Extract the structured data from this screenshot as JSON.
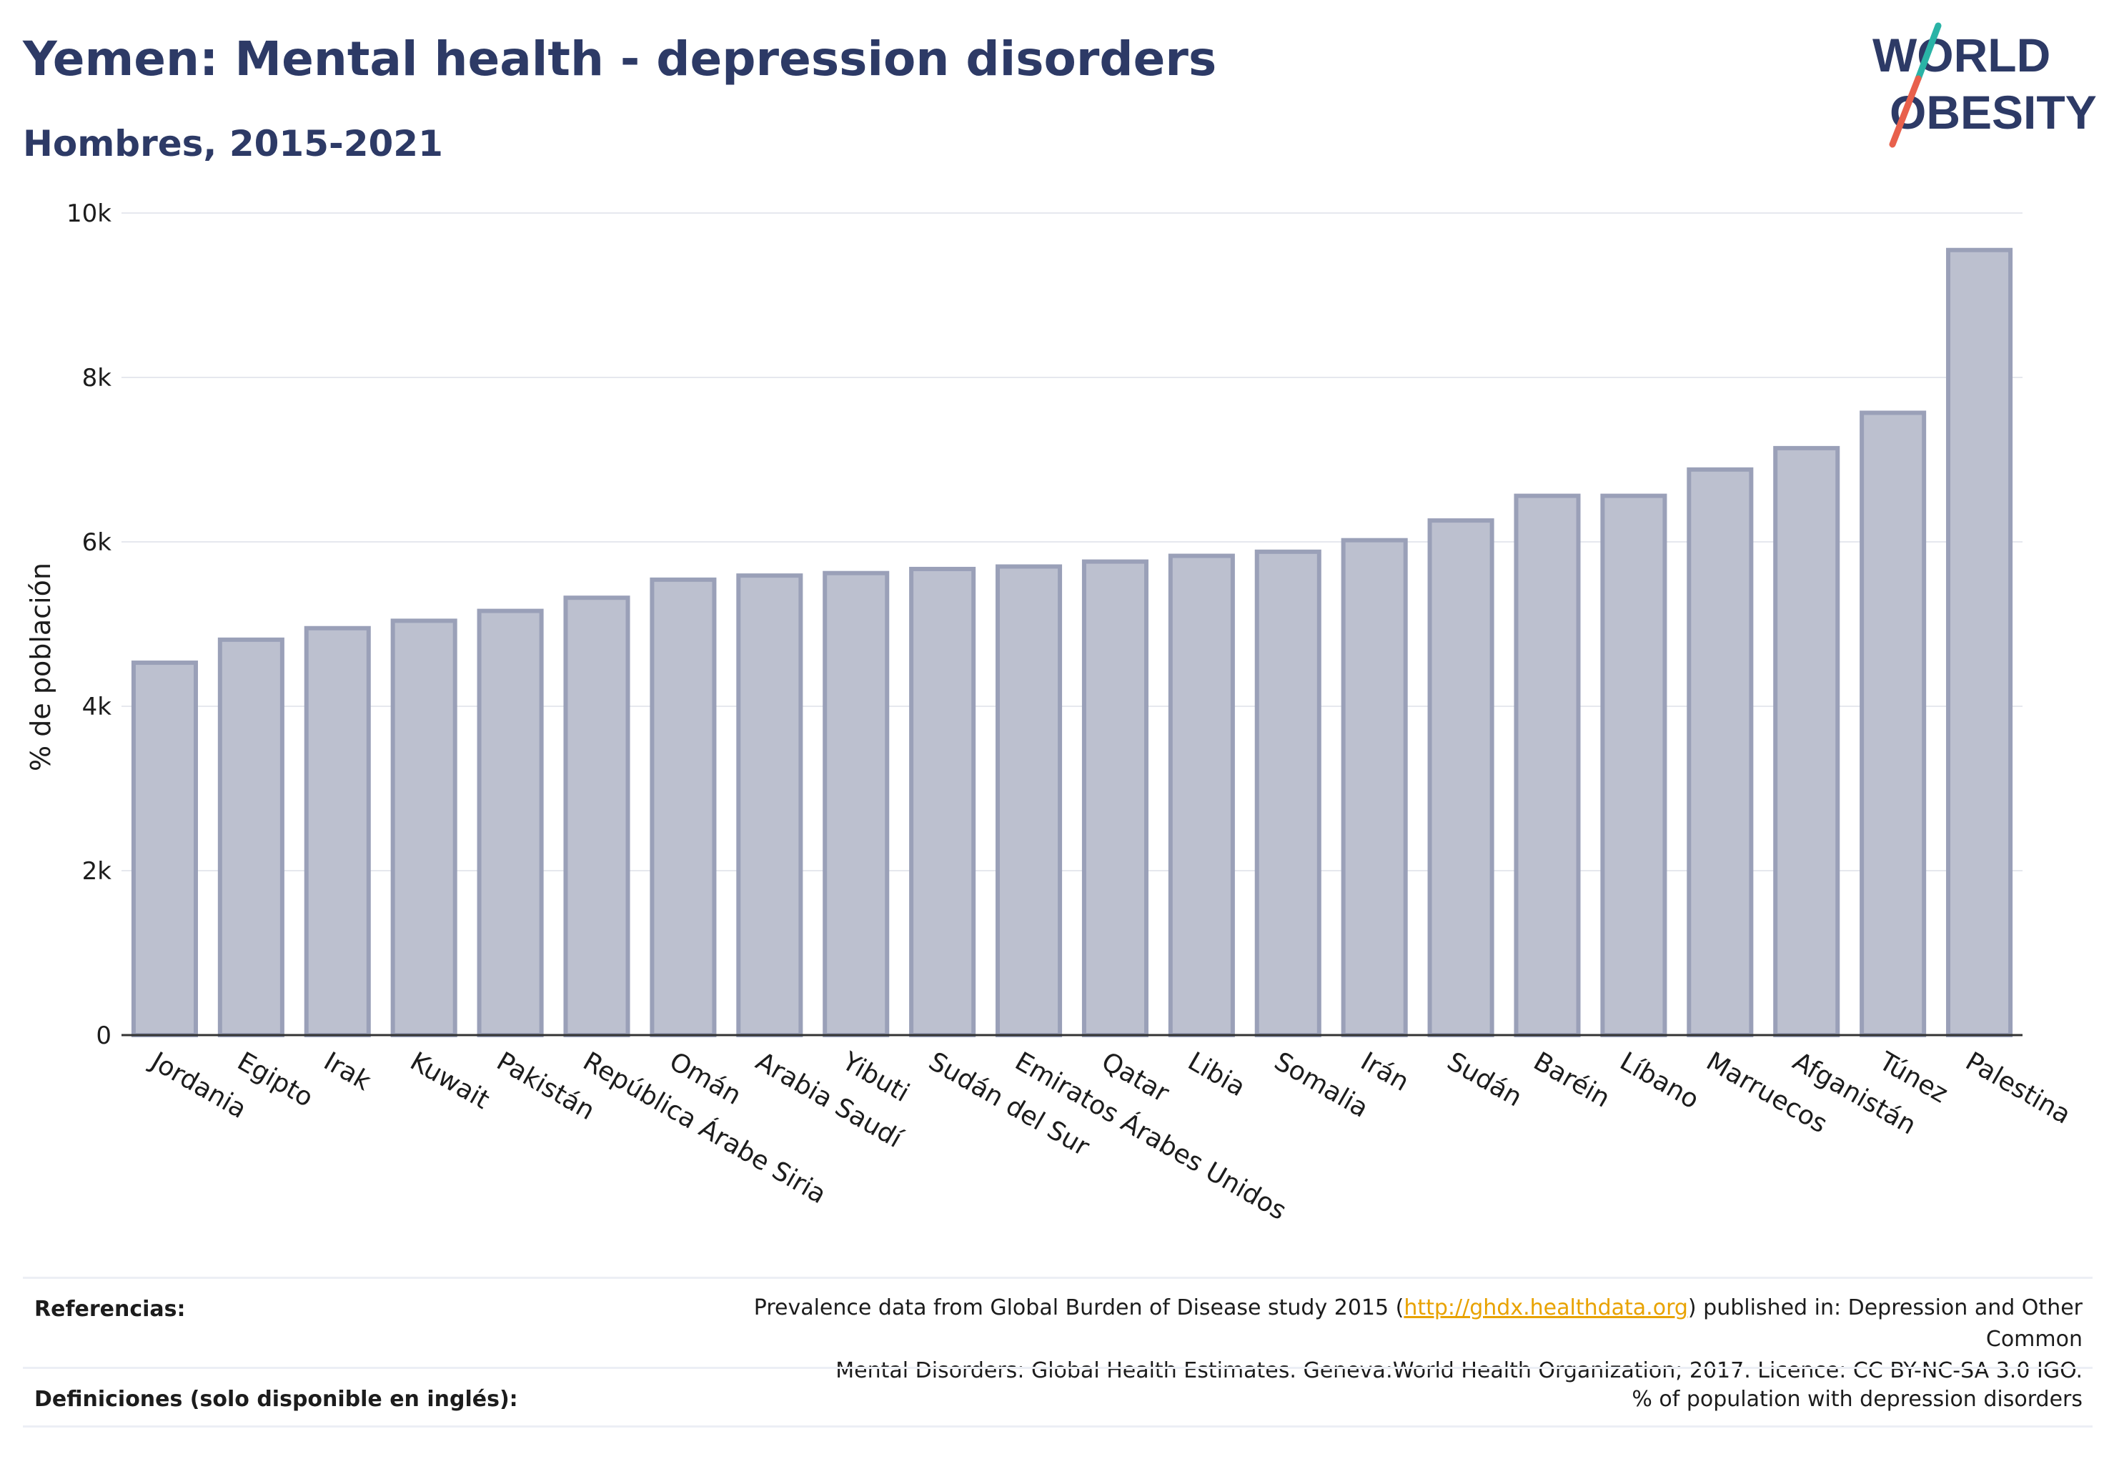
{
  "header": {
    "title": "Yemen: Mental health - depression disorders",
    "subtitle": "Hombres, 2015-2021"
  },
  "logo": {
    "line1": "WORLD",
    "line2": "OBESITY",
    "colors": {
      "text": "#2d3a66",
      "slash_top": "#2ab3a6",
      "slash_bottom": "#e8604c"
    }
  },
  "chart_data": {
    "type": "bar",
    "title": "Yemen: Mental health - depression disorders",
    "subtitle": "Hombres, 2015-2021",
    "ylabel": "% de población",
    "xlabel": "",
    "ylim": [
      0,
      10000
    ],
    "yticks": [
      0,
      2000,
      4000,
      6000,
      8000,
      10000
    ],
    "ytick_labels": [
      "0",
      "2k",
      "4k",
      "6k",
      "8k",
      "10k"
    ],
    "grid": true,
    "bar_color": "#bcc0cf",
    "bar_edge_color": "#9aa0b8",
    "categories": [
      "Jordania",
      "Egipto",
      "Irak",
      "Kuwait",
      "Pakistán",
      "República Árabe Siria",
      "Omán",
      "Arabia Saudí",
      "Yibuti",
      "Sudán del Sur",
      "Emiratos Árabes Unidos",
      "Qatar",
      "Libia",
      "Somalia",
      "Irán",
      "Sudán",
      "Baréin",
      "Líbano",
      "Marruecos",
      "Afganistán",
      "Túnez",
      "Palestina"
    ],
    "values": [
      4530,
      4810,
      4950,
      5040,
      5160,
      5320,
      5540,
      5590,
      5620,
      5670,
      5700,
      5760,
      5830,
      5880,
      6020,
      6260,
      6560,
      6560,
      6880,
      7140,
      7570,
      9550
    ]
  },
  "footer": {
    "references_label": "Referencias:",
    "references_text_before": "Prevalence data from Global Burden of Disease study 2015 (",
    "references_link": "http://ghdx.healthdata.org",
    "references_text_after": ") published in: Depression and Other Common",
    "references_text_line2": "Mental Disorders: Global Health Estimates. Geneva:World Health Organization; 2017. Licence: CC BY-NC-SA 3.0 IGO.",
    "definitions_label": "Definiciones (solo disponible en inglés):",
    "definitions_text": "% of population with depression disorders"
  }
}
